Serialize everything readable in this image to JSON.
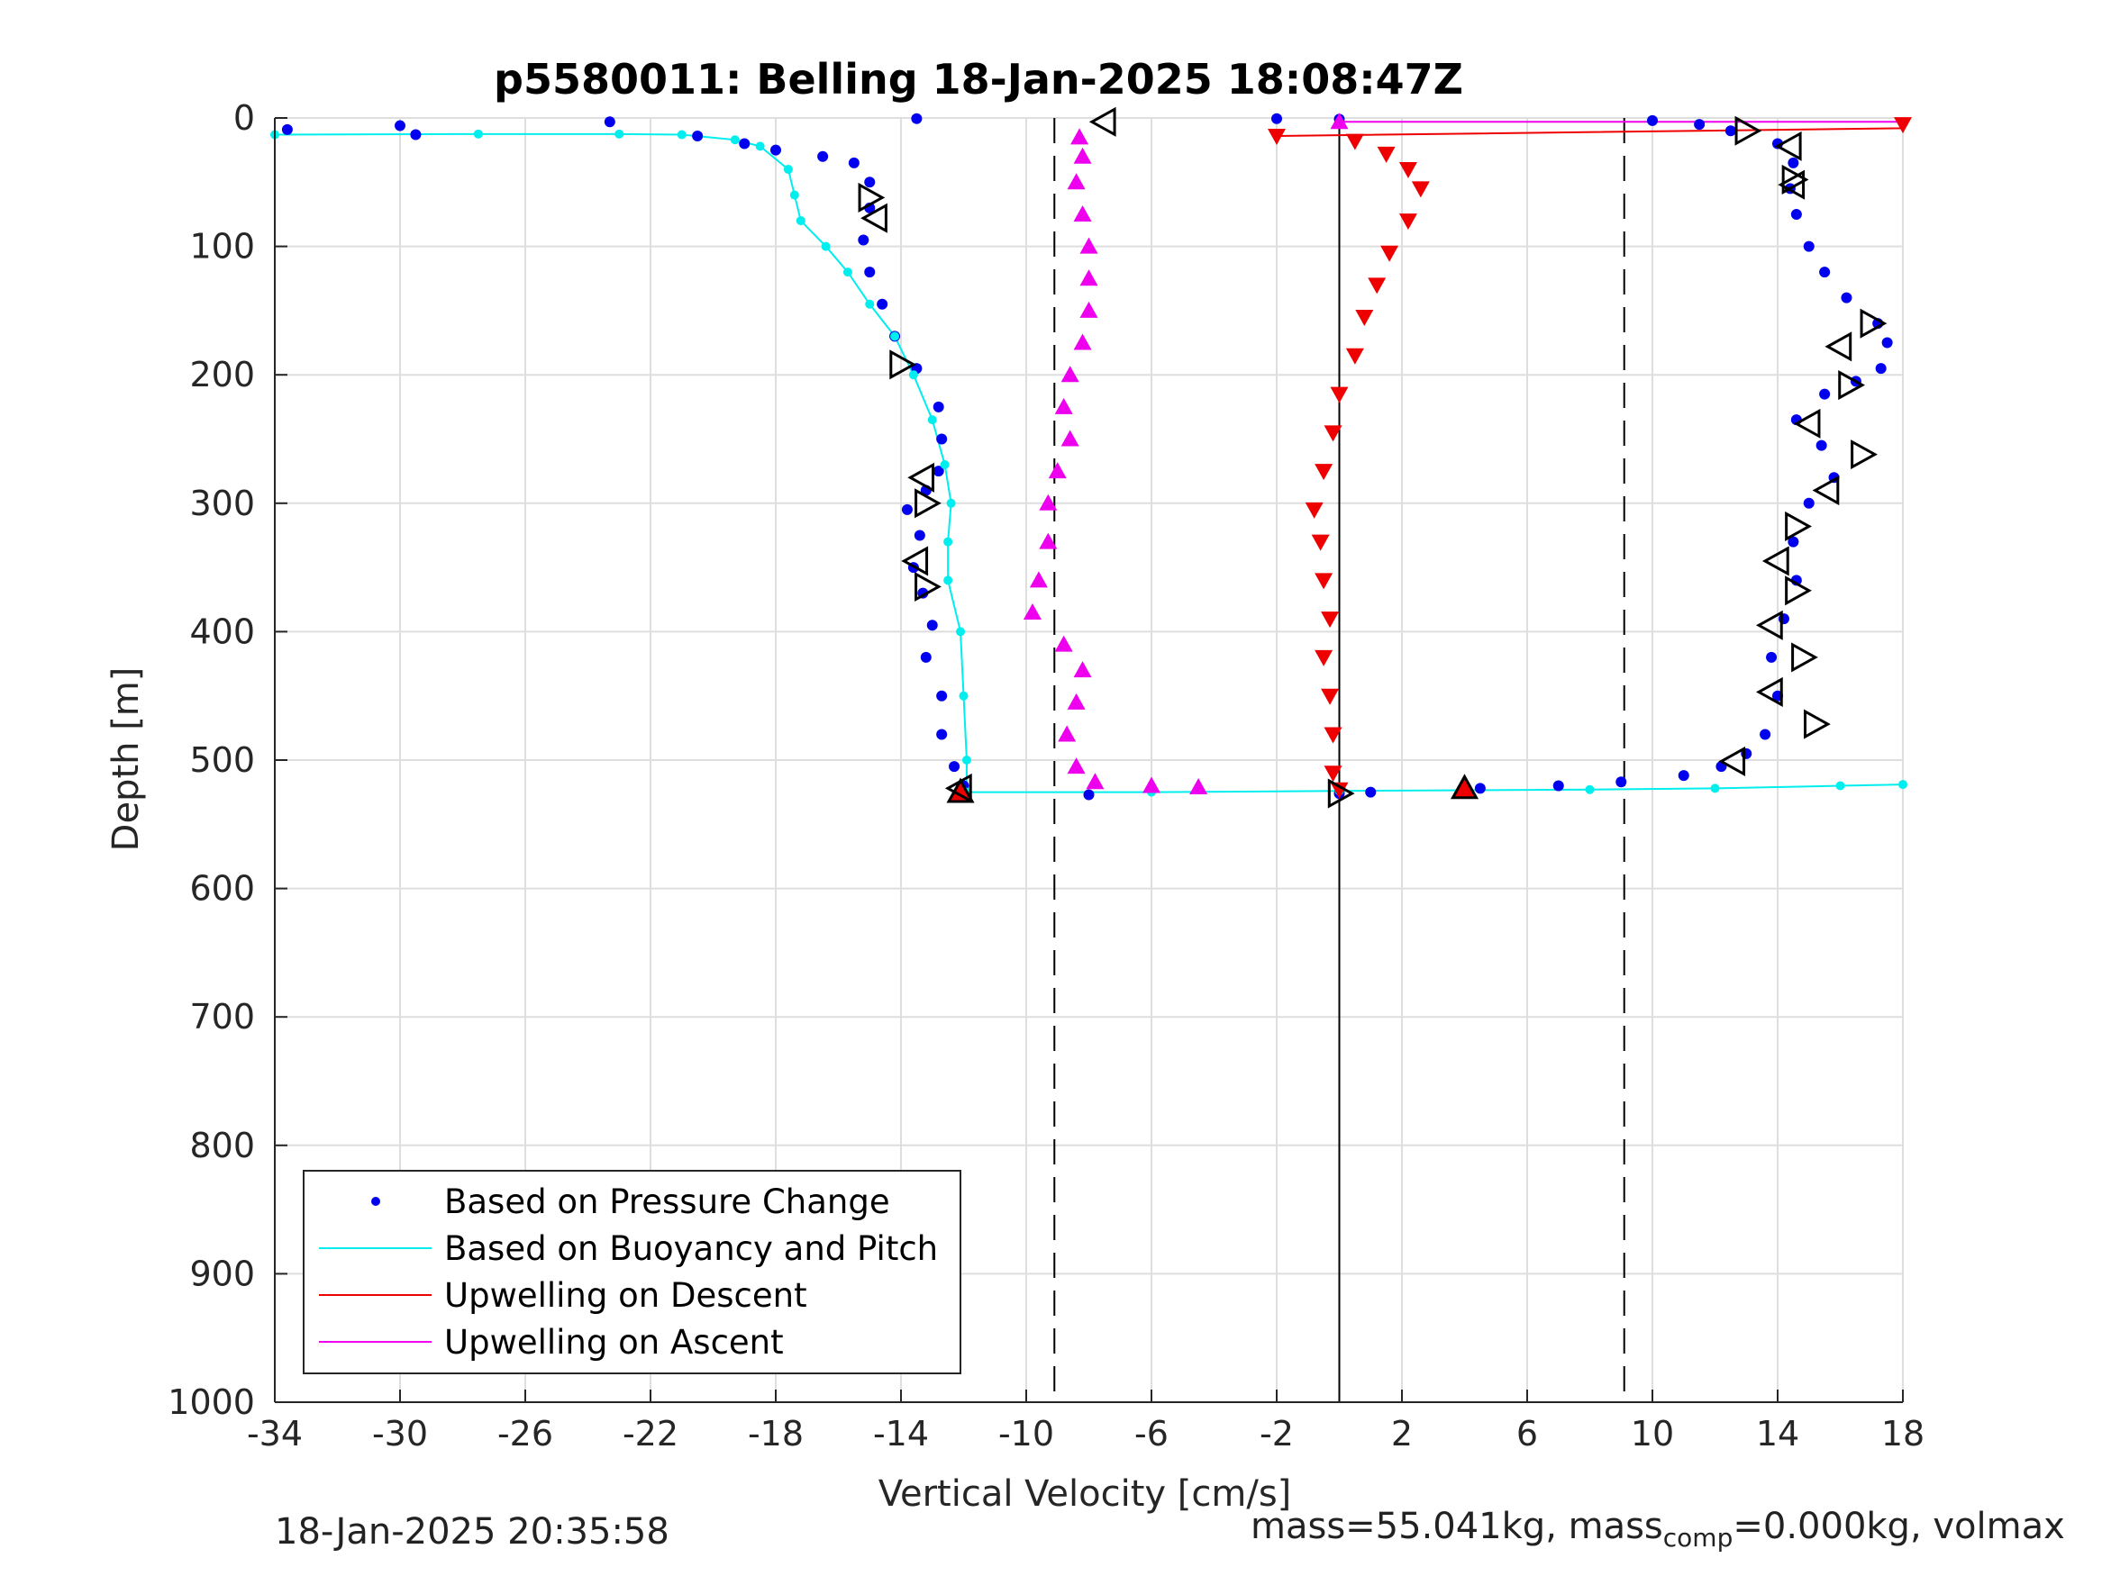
{
  "chart_data": {
    "type": "scatter",
    "title": "p5580011: Belling 18-Jan-2025 18:08:47Z",
    "xlabel": "Vertical Velocity [cm/s]",
    "ylabel": "Depth [m]",
    "xlim": [
      -34,
      18
    ],
    "ylim": [
      0,
      1000
    ],
    "y_reversed": true,
    "grid": true,
    "xticks": [
      -34,
      -30,
      -26,
      -22,
      -18,
      -14,
      -10,
      -6,
      -2,
      2,
      6,
      10,
      14,
      18
    ],
    "yticks": [
      0,
      100,
      200,
      300,
      400,
      500,
      600,
      700,
      800,
      900,
      1000
    ],
    "xtick_labels": [
      "-34",
      "-30",
      "-26",
      "-22",
      "-18",
      "-14",
      "-10",
      "-6",
      "-2",
      "2",
      "6",
      "10",
      "14",
      "18"
    ],
    "ytick_labels": [
      "0",
      "100",
      "200",
      "300",
      "400",
      "500",
      "600",
      "700",
      "800",
      "900",
      "1000"
    ],
    "reference_lines": [
      {
        "x": 0,
        "style": "solid",
        "color": "#000000"
      },
      {
        "x": -9.1,
        "style": "dashed",
        "color": "#000000"
      },
      {
        "x": 9.1,
        "style": "dashed",
        "color": "#000000"
      }
    ],
    "legend_position": "bottom-left",
    "series": [
      {
        "name": "Based on Pressure Change",
        "marker": "dot",
        "color": "#0000ee",
        "descent": [
          [
            -13.5,
            0.5
          ],
          [
            -33.6,
            9
          ],
          [
            -30,
            6
          ],
          [
            -29.5,
            13
          ],
          [
            -23.3,
            3
          ],
          [
            -20.5,
            14
          ],
          [
            -19,
            20
          ],
          [
            -18,
            25
          ],
          [
            -16.5,
            30
          ],
          [
            -15.5,
            35
          ],
          [
            -15,
            50
          ],
          [
            -15,
            70
          ],
          [
            -15.2,
            95
          ],
          [
            -15,
            120
          ],
          [
            -14.6,
            145
          ],
          [
            -14.2,
            170
          ],
          [
            -13.5,
            195
          ],
          [
            -12.8,
            225
          ],
          [
            -12.7,
            250
          ],
          [
            -12.8,
            275
          ],
          [
            -13.2,
            290
          ],
          [
            -13.8,
            305
          ],
          [
            -13.4,
            325
          ],
          [
            -13.6,
            350
          ],
          [
            -13.3,
            370
          ],
          [
            -13,
            395
          ],
          [
            -13.2,
            420
          ],
          [
            -12.7,
            450
          ],
          [
            -12.7,
            480
          ],
          [
            -12.3,
            505
          ],
          [
            -12,
            520
          ],
          [
            -12.2,
            527
          ]
        ],
        "ascent": [
          [
            -8,
            527
          ],
          [
            0,
            526
          ],
          [
            1,
            525
          ],
          [
            4.5,
            522
          ],
          [
            7,
            520
          ],
          [
            9,
            517
          ],
          [
            11,
            512
          ],
          [
            12.2,
            505
          ],
          [
            13,
            495
          ],
          [
            13.6,
            480
          ],
          [
            14,
            450
          ],
          [
            13.8,
            420
          ],
          [
            14.2,
            390
          ],
          [
            14.6,
            360
          ],
          [
            14.5,
            330
          ],
          [
            15,
            300
          ],
          [
            15.8,
            280
          ],
          [
            15.4,
            255
          ],
          [
            14.6,
            235
          ],
          [
            15.5,
            215
          ],
          [
            16.5,
            205
          ],
          [
            17.3,
            195
          ],
          [
            17.5,
            175
          ],
          [
            17.2,
            160
          ],
          [
            16.2,
            140
          ],
          [
            15.5,
            120
          ],
          [
            15,
            100
          ],
          [
            14.6,
            75
          ],
          [
            14.4,
            55
          ],
          [
            14.5,
            35
          ],
          [
            14,
            20
          ],
          [
            12.5,
            10
          ],
          [
            11.5,
            5
          ],
          [
            10,
            2
          ],
          [
            0,
            1
          ],
          [
            -2,
            0.5
          ]
        ]
      },
      {
        "name": "Based on Buoyancy and Pitch",
        "marker": "line",
        "color": "#00eeee",
        "descent": [
          [
            -34,
            13
          ],
          [
            -27.5,
            12.5
          ],
          [
            -23,
            12.5
          ],
          [
            -21,
            13
          ],
          [
            -19.3,
            17
          ],
          [
            -18.5,
            22
          ],
          [
            -17.6,
            40
          ],
          [
            -17.4,
            60
          ],
          [
            -17.2,
            80
          ],
          [
            -16.4,
            100
          ],
          [
            -15.7,
            120
          ],
          [
            -15,
            145
          ],
          [
            -14.2,
            170
          ],
          [
            -13.6,
            200
          ],
          [
            -13,
            235
          ],
          [
            -12.6,
            270
          ],
          [
            -12.4,
            300
          ],
          [
            -12.5,
            330
          ],
          [
            -12.5,
            360
          ],
          [
            -12.1,
            400
          ],
          [
            -12,
            450
          ],
          [
            -11.9,
            500
          ],
          [
            -11.9,
            525
          ],
          [
            -6,
            525
          ],
          [
            0,
            524
          ],
          [
            8,
            523
          ],
          [
            12,
            522
          ],
          [
            16,
            520
          ],
          [
            18,
            519
          ]
        ]
      },
      {
        "name": "Upwelling on Descent",
        "marker": "triangle-down",
        "color": "#ee0000",
        "points": [
          [
            18,
            5
          ],
          [
            -2,
            14
          ],
          [
            0.5,
            18
          ],
          [
            1.5,
            28
          ],
          [
            2.2,
            40
          ],
          [
            2.6,
            55
          ],
          [
            2.2,
            80
          ],
          [
            1.6,
            105
          ],
          [
            1.2,
            130
          ],
          [
            0.8,
            155
          ],
          [
            0.5,
            185
          ],
          [
            0,
            215
          ],
          [
            -0.2,
            245
          ],
          [
            -0.5,
            275
          ],
          [
            -0.8,
            305
          ],
          [
            -0.6,
            330
          ],
          [
            -0.5,
            360
          ],
          [
            -0.3,
            390
          ],
          [
            -0.5,
            420
          ],
          [
            -0.3,
            450
          ],
          [
            -0.2,
            480
          ],
          [
            -0.2,
            510
          ],
          [
            0,
            523
          ]
        ],
        "line": [
          [
            18,
            5
          ],
          [
            18,
            8
          ],
          [
            -2,
            14
          ]
        ],
        "markers_over": [
          [
            -12.1,
            525
          ],
          [
            4,
            522
          ]
        ]
      },
      {
        "name": "Upwelling on Ascent",
        "marker": "triangle-up",
        "color": "#ee00ee",
        "points": [
          [
            -4.5,
            521
          ],
          [
            -6,
            520
          ],
          [
            -7.8,
            517
          ],
          [
            -8.4,
            505
          ],
          [
            -8.7,
            480
          ],
          [
            -8.4,
            455
          ],
          [
            -8.2,
            430
          ],
          [
            -8.8,
            410
          ],
          [
            -9.8,
            385
          ],
          [
            -9.6,
            360
          ],
          [
            -9.3,
            330
          ],
          [
            -9.3,
            300
          ],
          [
            -9,
            275
          ],
          [
            -8.6,
            250
          ],
          [
            -8.8,
            225
          ],
          [
            -8.6,
            200
          ],
          [
            -8.2,
            175
          ],
          [
            -8,
            150
          ],
          [
            -8,
            125
          ],
          [
            -8,
            100
          ],
          [
            -8.2,
            75
          ],
          [
            -8.4,
            50
          ],
          [
            -8.2,
            30
          ],
          [
            -8.3,
            15
          ],
          [
            0,
            3
          ]
        ],
        "line": [
          [
            0,
            3
          ],
          [
            18,
            3
          ]
        ]
      }
    ],
    "open_triangle_markers": [
      [
        -15,
        62
      ],
      [
        -14.8,
        78
      ],
      [
        -14,
        192
      ],
      [
        -13.3,
        280
      ],
      [
        -13.2,
        300
      ],
      [
        -13.5,
        345
      ],
      [
        -13.2,
        365
      ],
      [
        -12.1,
        522
      ],
      [
        0,
        526
      ],
      [
        -7.5,
        3
      ],
      [
        13,
        10
      ],
      [
        14.4,
        22
      ],
      [
        14.5,
        48
      ],
      [
        14.5,
        52
      ],
      [
        17,
        160
      ],
      [
        16,
        178
      ],
      [
        16.3,
        208
      ],
      [
        15,
        238
      ],
      [
        16.7,
        262
      ],
      [
        15.6,
        290
      ],
      [
        14.6,
        318
      ],
      [
        14,
        345
      ],
      [
        14.6,
        368
      ],
      [
        13.8,
        395
      ],
      [
        14.8,
        420
      ],
      [
        13.8,
        447
      ],
      [
        15.2,
        472
      ],
      [
        12.6,
        501
      ]
    ]
  },
  "footer": {
    "timestamp": "18-Jan-2025 20:35:58",
    "mass_text_a": "mass=55.041kg, mass",
    "mass_sub": "comp",
    "mass_text_b": "=0.000kg, volmax"
  }
}
